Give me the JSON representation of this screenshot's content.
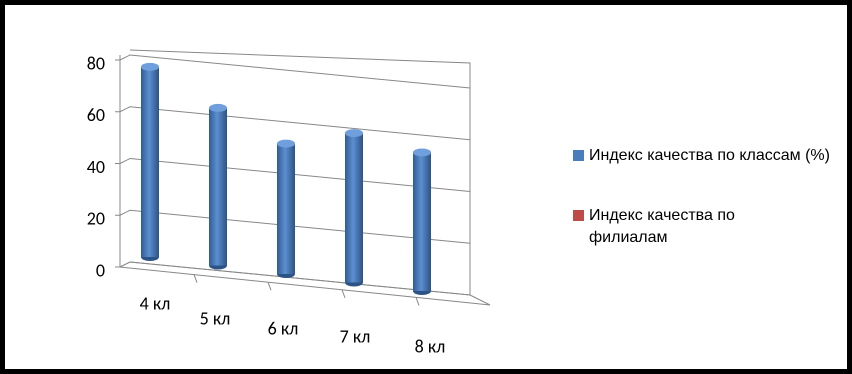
{
  "chart_data": {
    "type": "bar3d",
    "categories": [
      "4 кл",
      "5 кл",
      "6 кл",
      "7 кл",
      "8 кл"
    ],
    "series": [
      {
        "name": "Индекс качества по классам (%)",
        "color": "#4a7ebb",
        "values": [
          70,
          58,
          48,
          55,
          51
        ]
      },
      {
        "name": "Индекс качества по филиалам",
        "color": "#be4b48",
        "values": [
          null,
          null,
          null,
          null,
          null
        ]
      }
    ],
    "ylim": [
      0,
      80
    ],
    "yticks": [
      0,
      20,
      40,
      60,
      80
    ],
    "grid": true
  }
}
